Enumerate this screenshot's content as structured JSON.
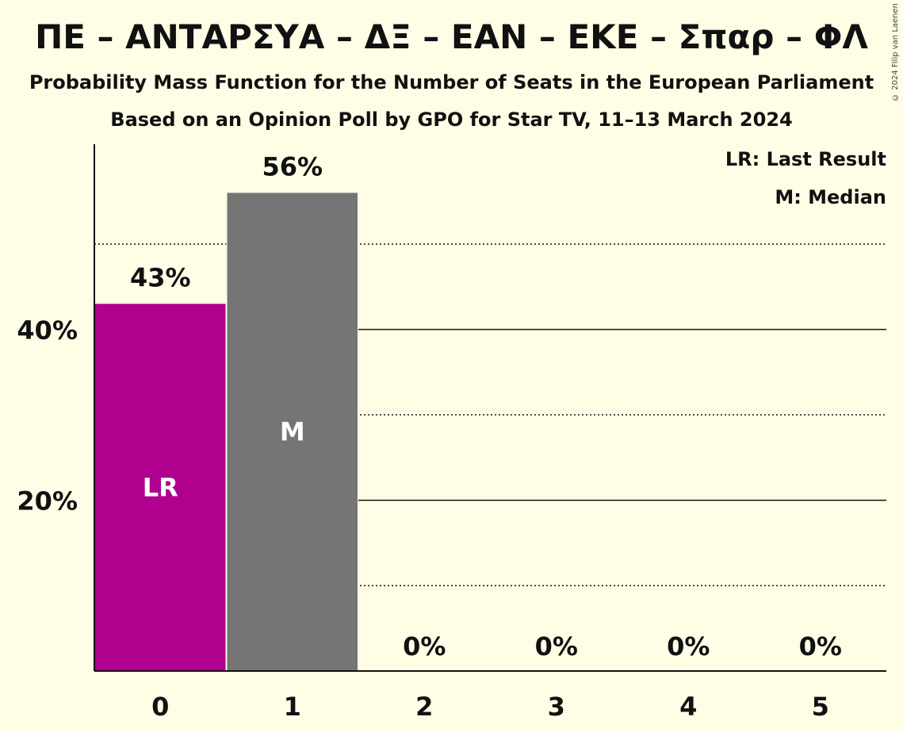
{
  "title": "ΠΕ – ΑΝΤΑΡΣΥΑ – ΔΞ – ΕΑΝ – ΕΚΕ – Σπαρ – ΦΛ",
  "subtitle1": "Probability Mass Function for the Number of Seats in the European Parliament",
  "subtitle2": "Based on an Opinion Poll by GPO for Star TV, 11–13 March 2024",
  "copyright": "© 2024 Filip van Laenen",
  "legend": {
    "last_result": "LR: Last Result",
    "median": "M: Median"
  },
  "chart_data": {
    "type": "bar",
    "categories": [
      "0",
      "1",
      "2",
      "3",
      "4",
      "5"
    ],
    "values": [
      43,
      56,
      0,
      0,
      0,
      0
    ],
    "value_labels": [
      "43%",
      "56%",
      "0%",
      "0%",
      "0%",
      "0%"
    ],
    "bar_markers": [
      "LR",
      "M",
      "",
      "",
      "",
      ""
    ],
    "bar_colors": [
      "#b0008e",
      "#757575",
      "#757575",
      "#757575",
      "#757575",
      "#757575"
    ],
    "ylim": [
      0,
      61.7
    ],
    "y_ticks": [
      20,
      40
    ],
    "y_tick_labels": [
      "20%",
      "40%"
    ],
    "solid_gridlines": [
      20,
      40
    ],
    "dotted_gridlines": [
      10,
      30,
      50
    ]
  }
}
